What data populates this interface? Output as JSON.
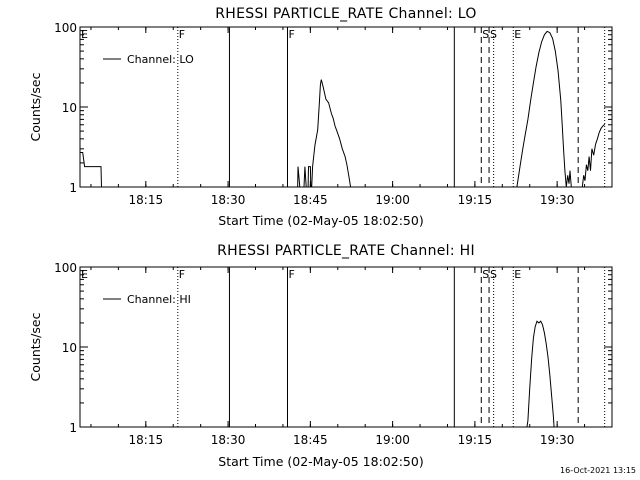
{
  "chart_data": [
    {
      "type": "line",
      "title": "RHESSI PARTICLE_RATE Channel: LO",
      "xlabel": "Start Time (02-May-05 18:02:50)",
      "ylabel": "Counts/sec",
      "yscale": "log",
      "ylim": [
        1,
        100
      ],
      "xlim": [
        "18:03:00",
        "19:40:00"
      ],
      "x_ticks": [
        "18:15",
        "18:30",
        "18:45",
        "19:00",
        "19:15",
        "19:30"
      ],
      "y_ticks": [
        "1",
        "10",
        "100"
      ],
      "legend": {
        "entries": [
          "Channel: LO"
        ],
        "position": "top-left"
      },
      "grid": false,
      "event_markers": [
        {
          "label": "E",
          "time": "18:03:00",
          "style": "none"
        },
        {
          "label": "F",
          "time": "18:20:50",
          "style": "dotted"
        },
        {
          "label": "",
          "time": "18:30:15",
          "style": "solid"
        },
        {
          "label": "F",
          "time": "18:40:50",
          "style": "solid"
        },
        {
          "label": "",
          "time": "19:11:15",
          "style": "solid"
        },
        {
          "label": "S",
          "time": "19:16:10",
          "style": "dashed"
        },
        {
          "label": "S",
          "time": "19:17:35",
          "style": "dashed"
        },
        {
          "label": "",
          "time": "19:18:25",
          "style": "dotted"
        },
        {
          "label": "E",
          "time": "19:22:00",
          "style": "dotted"
        },
        {
          "label": "",
          "time": "19:33:50",
          "style": "dashed"
        },
        {
          "label": "",
          "time": "19:38:40",
          "style": "dotted"
        }
      ],
      "series": [
        {
          "name": "Channel: LO",
          "segments": [
            [
              [
                "18:03:00",
                2.7
              ],
              [
                "18:03:30",
                2.7
              ],
              [
                "18:03:50",
                1.8
              ],
              [
                "18:06:50",
                1.8
              ],
              [
                "18:06:55",
                1.0
              ],
              [
                "18:07:20",
                0.8
              ]
            ],
            [
              [
                "18:42:40",
                0.9
              ],
              [
                "18:42:45",
                1.8
              ],
              [
                "18:43:05",
                1.0
              ],
              [
                "18:43:20",
                1.0
              ],
              [
                "18:43:50",
                1.0
              ],
              [
                "18:44:00",
                1.8
              ],
              [
                "18:44:15",
                1.0
              ],
              [
                "18:44:35",
                1.0
              ],
              [
                "18:44:40",
                1.8
              ],
              [
                "18:45:00",
                1.8
              ],
              [
                "18:45:05",
                1.0
              ],
              [
                "18:45:15",
                1.0
              ],
              [
                "18:45:25",
                1.8
              ],
              [
                "18:45:50",
                3.3
              ],
              [
                "18:46:20",
                5.2
              ],
              [
                "18:46:40",
                12.0
              ],
              [
                "18:46:50",
                19.0
              ],
              [
                "18:47:00",
                22.0
              ],
              [
                "18:47:20",
                18.0
              ],
              [
                "18:47:50",
                12.5
              ],
              [
                "18:48:20",
                11.3
              ],
              [
                "18:48:50",
                8.3
              ],
              [
                "18:49:10",
                7.2
              ],
              [
                "18:49:30",
                5.8
              ],
              [
                "18:49:50",
                5.0
              ],
              [
                "18:50:20",
                4.0
              ],
              [
                "18:50:50",
                3.0
              ],
              [
                "18:51:20",
                2.4
              ],
              [
                "18:51:40",
                1.9
              ],
              [
                "18:52:00",
                1.4
              ],
              [
                "18:52:20",
                1.0
              ],
              [
                "18:52:30",
                0.8
              ]
            ],
            [
              [
                "19:22:30",
                0.8
              ],
              [
                "19:22:40",
                1.0
              ],
              [
                "19:23:10",
                1.7
              ],
              [
                "19:23:40",
                2.8
              ],
              [
                "19:24:10",
                4.5
              ],
              [
                "19:24:40",
                7.0
              ],
              [
                "19:25:10",
                12.0
              ],
              [
                "19:25:40",
                20.0
              ],
              [
                "19:26:10",
                32.0
              ],
              [
                "19:26:40",
                48.0
              ],
              [
                "19:27:10",
                65.0
              ],
              [
                "19:27:40",
                80.0
              ],
              [
                "19:28:10",
                88.0
              ],
              [
                "19:28:40",
                85.0
              ],
              [
                "19:29:10",
                72.0
              ],
              [
                "19:29:40",
                50.0
              ],
              [
                "19:30:10",
                28.0
              ],
              [
                "19:30:40",
                12.0
              ],
              [
                "19:30:55",
                6.0
              ],
              [
                "19:31:10",
                2.9
              ],
              [
                "19:31:25",
                1.6
              ],
              [
                "19:31:40",
                1.0
              ],
              [
                "19:31:55",
                1.4
              ],
              [
                "19:32:10",
                1.1
              ],
              [
                "19:32:20",
                1.6
              ],
              [
                "19:32:35",
                1.0
              ],
              [
                "19:32:50",
                0.85
              ]
            ],
            [
              [
                "19:34:25",
                0.85
              ],
              [
                "19:34:35",
                1.0
              ],
              [
                "19:34:50",
                1.4
              ],
              [
                "19:35:05",
                1.2
              ],
              [
                "19:35:20",
                1.9
              ],
              [
                "19:35:35",
                1.6
              ],
              [
                "19:35:50",
                2.4
              ],
              [
                "19:36:05",
                1.6
              ],
              [
                "19:36:20",
                3.0
              ],
              [
                "19:36:40",
                2.5
              ],
              [
                "19:37:00",
                3.4
              ],
              [
                "19:37:20",
                4.0
              ],
              [
                "19:37:40",
                4.8
              ],
              [
                "19:38:00",
                5.4
              ],
              [
                "19:38:20",
                5.8
              ],
              [
                "19:38:40",
                6.1
              ]
            ]
          ]
        }
      ]
    },
    {
      "type": "line",
      "title": "RHESSI PARTICLE_RATE Channel: HI",
      "xlabel": "Start Time (02-May-05 18:02:50)",
      "ylabel": "Counts/sec",
      "yscale": "log",
      "ylim": [
        1,
        100
      ],
      "xlim": [
        "18:03:00",
        "19:40:00"
      ],
      "x_ticks": [
        "18:15",
        "18:30",
        "18:45",
        "19:00",
        "19:15",
        "19:30"
      ],
      "y_ticks": [
        "1",
        "10",
        "100"
      ],
      "legend": {
        "entries": [
          "Channel: HI"
        ],
        "position": "top-left"
      },
      "grid": false,
      "event_markers": [
        {
          "label": "E",
          "time": "18:03:00",
          "style": "none"
        },
        {
          "label": "F",
          "time": "18:20:50",
          "style": "dotted"
        },
        {
          "label": "",
          "time": "18:30:15",
          "style": "solid"
        },
        {
          "label": "F",
          "time": "18:40:50",
          "style": "solid"
        },
        {
          "label": "",
          "time": "19:11:15",
          "style": "solid"
        },
        {
          "label": "S",
          "time": "19:16:10",
          "style": "dashed"
        },
        {
          "label": "S",
          "time": "19:17:35",
          "style": "dashed"
        },
        {
          "label": "",
          "time": "19:18:25",
          "style": "dotted"
        },
        {
          "label": "E",
          "time": "19:22:00",
          "style": "dotted"
        },
        {
          "label": "",
          "time": "19:33:50",
          "style": "dashed"
        },
        {
          "label": "",
          "time": "19:38:40",
          "style": "dotted"
        }
      ],
      "series": [
        {
          "name": "Channel: HI",
          "segments": [
            [
              [
                "19:24:20",
                0.85
              ],
              [
                "19:24:40",
                1.2
              ],
              [
                "19:25:00",
                3.0
              ],
              [
                "19:25:20",
                7.0
              ],
              [
                "19:25:40",
                13.0
              ],
              [
                "19:26:00",
                18.0
              ],
              [
                "19:26:20",
                21.0
              ],
              [
                "19:26:40",
                20.0
              ],
              [
                "19:27:00",
                21.0
              ],
              [
                "19:27:20",
                19.0
              ],
              [
                "19:27:40",
                15.0
              ],
              [
                "19:28:00",
                11.0
              ],
              [
                "19:28:20",
                7.5
              ],
              [
                "19:28:40",
                4.5
              ],
              [
                "19:29:00",
                2.4
              ],
              [
                "19:29:20",
                1.3
              ],
              [
                "19:29:30",
                0.85
              ]
            ]
          ]
        }
      ]
    }
  ],
  "footer": {
    "timestamp": "16-Oct-2021 13:15"
  }
}
